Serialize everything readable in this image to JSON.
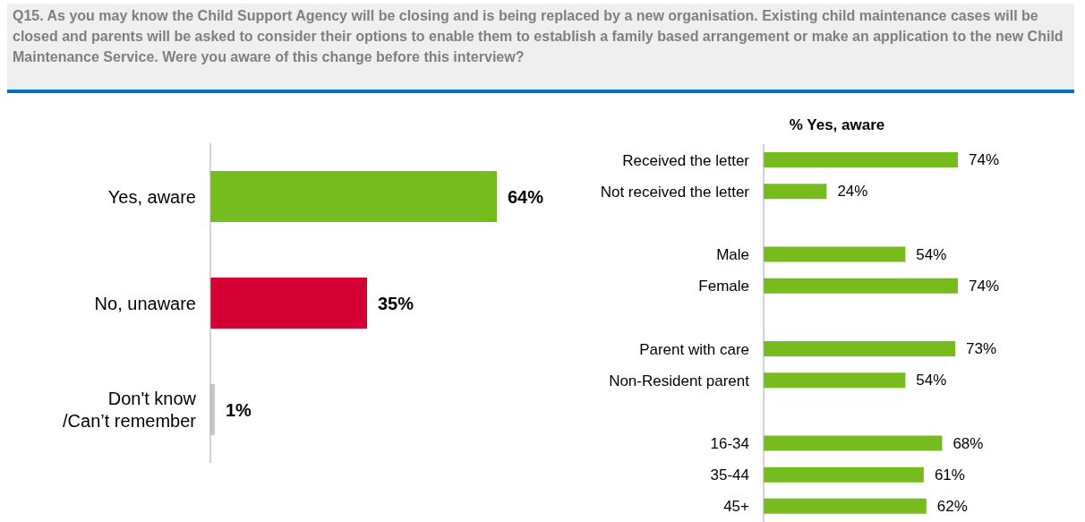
{
  "chart_data": [
    {
      "type": "bar",
      "orientation": "horizontal",
      "title": "Q15. As you may know the Child Support Agency will be closing and is being replaced by a new organisation. Existing child maintenance cases will be closed and parents will be asked to consider their options to enable them to establish a family based arrangement or make an application to the new Child Maintenance Service. Were you aware of this change before this interview?",
      "categories": [
        "Yes, aware",
        "No, unaware",
        "Don't know /Can’t remember"
      ],
      "values": [
        64,
        35,
        1
      ],
      "colors": [
        "#77bc1f",
        "#d50032",
        "#c8c8c8"
      ],
      "value_labels": [
        "64%",
        "35%",
        "1%"
      ],
      "legend": false
    },
    {
      "type": "bar",
      "orientation": "horizontal",
      "title": "% Yes, aware",
      "categories": [
        "Received the letter",
        "Not received the letter",
        null,
        "Male",
        "Female",
        null,
        "Parent with care",
        "Non-Resident parent",
        null,
        "16-34",
        "35-44",
        "45+"
      ],
      "values": [
        74,
        24,
        null,
        54,
        74,
        null,
        73,
        54,
        null,
        68,
        61,
        62
      ],
      "color": "#77bc1f",
      "value_labels": [
        "74%",
        "24%",
        null,
        "54%",
        "74%",
        null,
        "73%",
        "54%",
        null,
        "68%",
        "61%",
        "62%"
      ],
      "legend": false
    }
  ]
}
